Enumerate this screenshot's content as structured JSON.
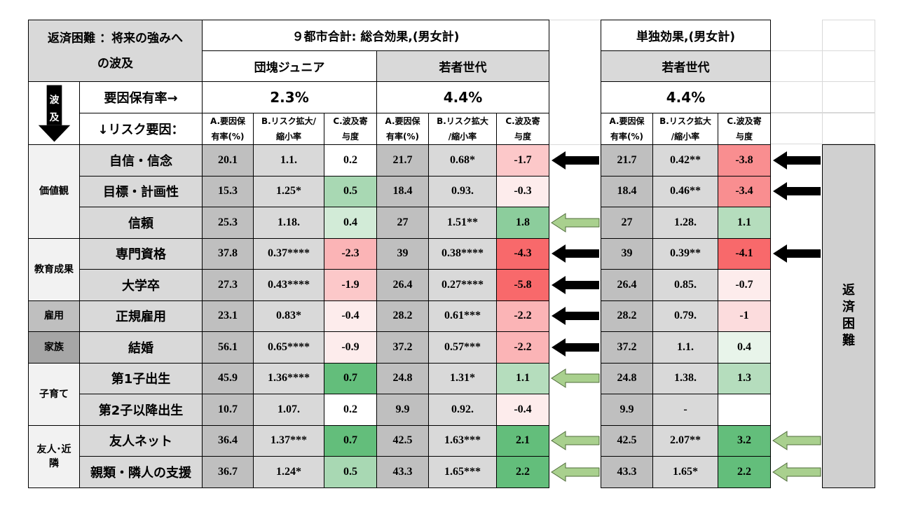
{
  "header": {
    "title_line1": "返済困難 ：将来の強みへ",
    "title_line2": "の波及",
    "section1_title": "９都市合計: 総合効果,(男女計)",
    "section2_title": "単独効果,(男女計)",
    "groups": {
      "dankai": "団塊ジュニア",
      "wakamono1": "若者世代",
      "wakamono2": "若者世代"
    },
    "row_label_rate": "要因保有率→",
    "row_label_risk": "↓リスク要因：",
    "rates": {
      "dankai": "2.3%",
      "wakamono1": "4.4%",
      "wakamono2": "4.4%"
    },
    "arrow_char1": "波",
    "arrow_char2": "及",
    "col_a_line1": "A.要因保",
    "col_a_line2": "有率(%)",
    "col_b_line1": "B.リスク拡大/",
    "col_b_line2": "縮小率",
    "col_b2_line1": "B.リスク拡大",
    "col_b2_line2": "/縮小率",
    "col_c_line1": "C.波及寄",
    "col_c_line2": "与度"
  },
  "side_label": [
    "返",
    "済",
    "困",
    "難"
  ],
  "groups": [
    {
      "lines": [
        "価値観"
      ]
    },
    {
      "lines": [
        "教育成果"
      ]
    },
    {
      "lines": [
        "雇用"
      ]
    },
    {
      "lines": [
        "家族"
      ]
    },
    {
      "lines": [
        "子育て"
      ]
    },
    {
      "lines": [
        "友人･近",
        "隣"
      ]
    }
  ],
  "rows": [
    {
      "label": "自信・信念",
      "d": [
        "20.1",
        "1.1.",
        "0.2"
      ],
      "w1": [
        "21.7",
        "0.68*",
        "-1.7"
      ],
      "a1": "black",
      "w2": [
        "21.7",
        "0.42**",
        "-3.8"
      ],
      "a2": "black"
    },
    {
      "label": "目標・計画性",
      "d": [
        "15.3",
        "1.25*",
        "0.5"
      ],
      "w1": [
        "18.4",
        "0.93.",
        "-0.3"
      ],
      "a1": "",
      "w2": [
        "18.4",
        "0.46**",
        "-3.4"
      ],
      "a2": "black"
    },
    {
      "label": "信頼",
      "d": [
        "25.3",
        "1.18.",
        "0.4"
      ],
      "w1": [
        "27",
        "1.51**",
        "1.8"
      ],
      "a1": "green",
      "w2": [
        "27",
        "1.28.",
        "1.1"
      ],
      "a2": ""
    },
    {
      "label": "専門資格",
      "d": [
        "37.8",
        "0.37****",
        "-2.3"
      ],
      "w1": [
        "39",
        "0.38****",
        "-4.3"
      ],
      "a1": "black",
      "w2": [
        "39",
        "0.39**",
        "-4.1"
      ],
      "a2": "black"
    },
    {
      "label": "大学卒",
      "d": [
        "27.3",
        "0.43****",
        "-1.9"
      ],
      "w1": [
        "26.4",
        "0.27****",
        "-5.8"
      ],
      "a1": "black",
      "w2": [
        "26.4",
        "0.85.",
        "-0.7"
      ],
      "a2": ""
    },
    {
      "label": "正規雇用",
      "d": [
        "23.1",
        "0.83*",
        "-0.4"
      ],
      "w1": [
        "28.2",
        "0.61***",
        "-2.2"
      ],
      "a1": "black",
      "w2": [
        "28.2",
        "0.79.",
        "-1"
      ],
      "a2": ""
    },
    {
      "label": "結婚",
      "d": [
        "56.1",
        "0.65****",
        "-0.9"
      ],
      "w1": [
        "37.2",
        "0.57***",
        "-2.2"
      ],
      "a1": "black",
      "w2": [
        "37.2",
        "1.1.",
        "0.4"
      ],
      "a2": ""
    },
    {
      "label": "第1子出生",
      "d": [
        "45.9",
        "1.36****",
        "0.7"
      ],
      "w1": [
        "24.8",
        "1.31*",
        "1.1"
      ],
      "a1": "green",
      "w2": [
        "24.8",
        "1.38.",
        "1.3"
      ],
      "a2": ""
    },
    {
      "label": "第2子以降出生",
      "d": [
        "10.7",
        "1.07.",
        "0.2"
      ],
      "w1": [
        "9.9",
        "0.92.",
        "-0.4"
      ],
      "a1": "",
      "w2": [
        "9.9",
        "-",
        ""
      ],
      "a2": ""
    },
    {
      "label": "友人ネット",
      "d": [
        "36.4",
        "1.37***",
        "0.7"
      ],
      "w1": [
        "42.5",
        "1.63***",
        "2.1"
      ],
      "a1": "green",
      "w2": [
        "42.5",
        "2.07**",
        "3.2"
      ],
      "a2": "green"
    },
    {
      "label": "親類・隣人の支援",
      "d": [
        "36.7",
        "1.24*",
        "0.5"
      ],
      "w1": [
        "43.3",
        "1.65***",
        "2.2"
      ],
      "a1": "green",
      "w2": [
        "43.3",
        "1.65*",
        "2.2"
      ],
      "a2": "green"
    }
  ]
}
